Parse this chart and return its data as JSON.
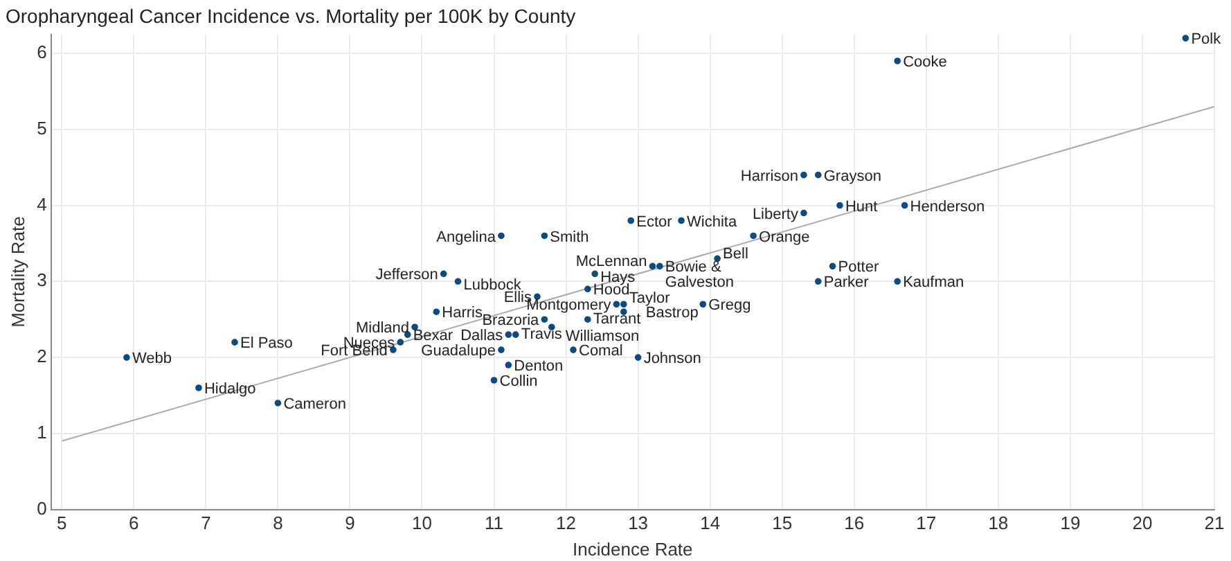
{
  "chart_data": {
    "type": "scatter",
    "title": "Oropharyngeal Cancer Incidence vs. Mortality per 100K by County",
    "xlabel": "Incidence Rate",
    "ylabel": "Mortality Rate",
    "xlim": [
      4.85,
      21
    ],
    "xticks": [
      5,
      6,
      7,
      8,
      9,
      10,
      11,
      12,
      13,
      14,
      15,
      16,
      17,
      18,
      19,
      20,
      21
    ],
    "ylim": [
      0,
      6.25
    ],
    "yticks": [
      0,
      1,
      2,
      3,
      4,
      5,
      6
    ],
    "grid": true,
    "legend": false,
    "series": [
      {
        "type": "scatter",
        "color": "#0d4a80",
        "marker": "circle",
        "x": [
          5.9,
          7.4,
          6.9,
          8.0,
          9.6,
          9.7,
          9.8,
          9.9,
          10.2,
          10.3,
          10.5,
          11.1,
          11.7,
          11.6,
          11.7,
          11.2,
          11.3,
          11.8,
          11.1,
          11.2,
          11.0,
          12.1,
          12.3,
          12.4,
          12.3,
          12.7,
          12.8,
          12.8,
          13.2,
          13.3,
          14.1,
          13.9,
          13.0,
          15.7,
          15.5,
          16.6,
          12.9,
          13.6,
          14.6,
          15.3,
          15.8,
          16.7,
          15.3,
          15.5,
          16.6,
          20.6
        ],
        "values": [
          2.0,
          2.2,
          1.6,
          1.4,
          2.1,
          2.2,
          2.3,
          2.4,
          2.6,
          3.1,
          3.0,
          3.6,
          3.6,
          2.8,
          2.5,
          2.3,
          2.3,
          2.4,
          2.1,
          1.9,
          1.7,
          2.1,
          2.9,
          3.1,
          2.5,
          2.7,
          2.7,
          2.6,
          3.2,
          3.2,
          3.3,
          2.7,
          2.0,
          3.2,
          3.0,
          3.0,
          3.8,
          3.8,
          3.6,
          3.9,
          4.0,
          4.0,
          4.4,
          4.4,
          5.9,
          6.2
        ],
        "value_labels": [
          "Webb",
          "El Paso",
          "Hidalgo",
          "Cameron",
          "Fort Bend",
          "Nueces",
          "Bexar",
          "Midland",
          "Harris",
          "Jefferson",
          "Lubbock",
          "Angelina",
          "Smith",
          "Ellis",
          "Brazoria",
          "Dallas",
          "Travis",
          "Williamson",
          "Guadalupe",
          "Denton",
          "Collin",
          "Comal",
          "Hood",
          "Hays",
          "Tarrant",
          "Montgomery",
          "Taylor",
          "Bastrop",
          "McLennan",
          "Bowie & Galveston",
          "Bell",
          "Gregg",
          "Johnson",
          "Potter",
          "Parker",
          "Kaufman",
          "Ector",
          "Wichita",
          "Orange",
          "Liberty",
          "Hunt",
          "Henderson",
          "Harrison",
          "Grayson",
          "Cooke",
          "Polk"
        ]
      },
      {
        "type": "line",
        "color": "#aaaaaa",
        "marker": "none",
        "x": [
          5,
          21
        ],
        "values": [
          0.9,
          5.3
        ]
      }
    ]
  }
}
